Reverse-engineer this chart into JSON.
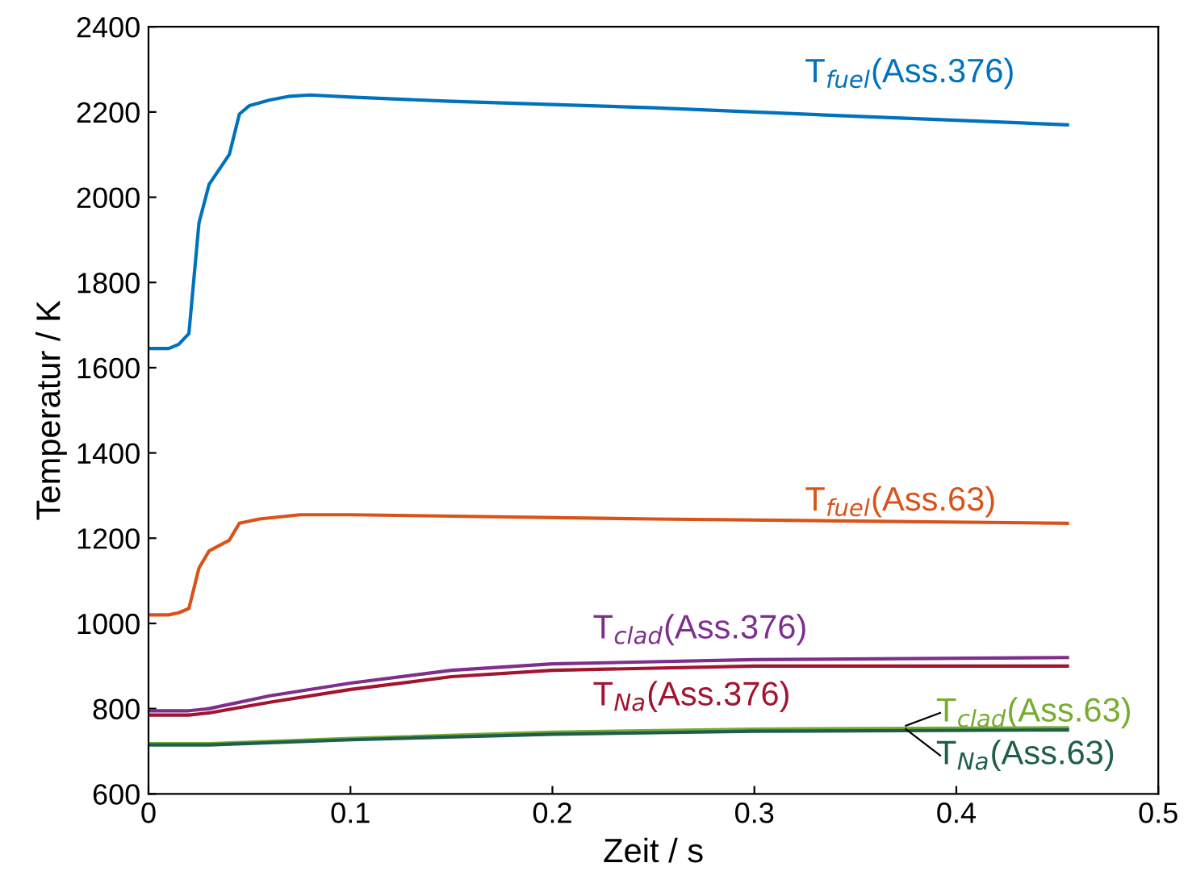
{
  "chart_data": {
    "type": "line",
    "xlabel": "Zeit / s",
    "ylabel": "Temperatur / K",
    "xlim": [
      0,
      0.5
    ],
    "ylim": [
      600,
      2400
    ],
    "xticks": [
      0,
      0.1,
      0.2,
      0.3,
      0.4,
      0.5
    ],
    "yticks": [
      600,
      800,
      1000,
      1200,
      1400,
      1600,
      1800,
      2000,
      2200,
      2400
    ],
    "grid": false,
    "legend": false,
    "marker": "none",
    "line_style": "solid",
    "series": [
      {
        "name": "T$_{fuel}$(Ass.376)",
        "color": "#0072bd",
        "x": [
          0,
          0.01,
          0.015,
          0.02,
          0.025,
          0.03,
          0.04,
          0.045,
          0.05,
          0.06,
          0.07,
          0.08,
          0.1,
          0.15,
          0.25,
          0.35,
          0.455
        ],
        "values": [
          1645,
          1645,
          1655,
          1680,
          1940,
          2030,
          2100,
          2195,
          2215,
          2228,
          2237,
          2240,
          2235,
          2225,
          2210,
          2190,
          2170
        ]
      },
      {
        "name": "T$_{fuel}$(Ass.63)",
        "color": "#d95319",
        "x": [
          0,
          0.01,
          0.015,
          0.02,
          0.025,
          0.03,
          0.04,
          0.045,
          0.055,
          0.075,
          0.1,
          0.25,
          0.455
        ],
        "values": [
          1020,
          1020,
          1025,
          1035,
          1130,
          1170,
          1195,
          1235,
          1245,
          1255,
          1255,
          1245,
          1235
        ]
      },
      {
        "name": "T$_{clad}$(Ass.376)",
        "color": "#7e2f8e",
        "x": [
          0,
          0.02,
          0.03,
          0.06,
          0.1,
          0.15,
          0.2,
          0.3,
          0.455
        ],
        "values": [
          795,
          795,
          800,
          830,
          860,
          890,
          905,
          915,
          920
        ]
      },
      {
        "name": "T$_{Na}$(Ass.376)",
        "color": "#a2142f",
        "x": [
          0,
          0.02,
          0.03,
          0.06,
          0.1,
          0.15,
          0.2,
          0.3,
          0.455
        ],
        "values": [
          785,
          785,
          790,
          815,
          845,
          875,
          890,
          900,
          900
        ]
      },
      {
        "name": "T$_{clad}$(Ass.63)",
        "color": "#77ac30",
        "x": [
          0,
          0.03,
          0.1,
          0.2,
          0.3,
          0.455
        ],
        "values": [
          718,
          718,
          730,
          745,
          752,
          755
        ]
      },
      {
        "name": "T$_{Na}$(Ass.63)",
        "color": "#1d5e4c",
        "x": [
          0,
          0.03,
          0.1,
          0.2,
          0.3,
          0.455
        ],
        "values": [
          715,
          715,
          727,
          740,
          747,
          750
        ]
      }
    ]
  }
}
